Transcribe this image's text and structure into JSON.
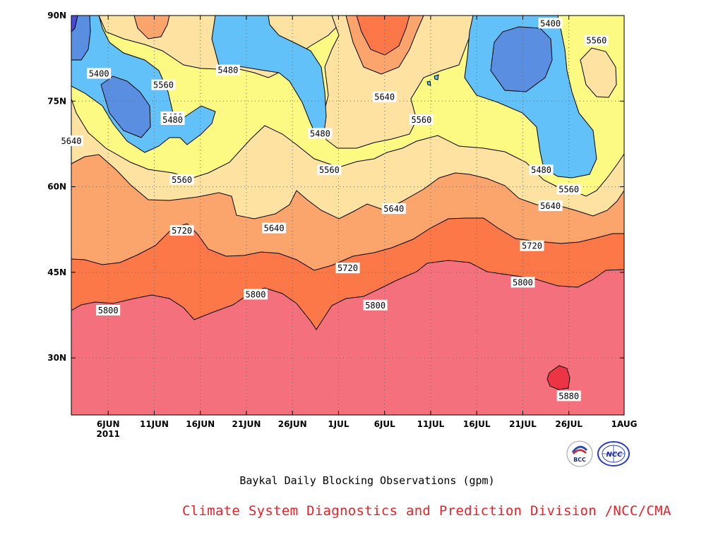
{
  "chart_data": {
    "type": "heatmap",
    "title": "Baykal Daily Blocking Observations (gpm)",
    "x_axis": {
      "type": "date",
      "range": [
        "2011-06-02",
        "2011-08-01"
      ],
      "tick_labels": [
        "6JUN",
        "11JUN",
        "16JUN",
        "21JUN",
        "26JUN",
        "1JUL",
        "6JUL",
        "11JUL",
        "16JUL",
        "21JUL",
        "26JUL",
        "1AUG"
      ],
      "tick_values": [
        "2011-06-06",
        "2011-06-11",
        "2011-06-16",
        "2011-06-21",
        "2011-06-26",
        "2011-07-01",
        "2011-07-06",
        "2011-07-11",
        "2011-07-16",
        "2011-07-21",
        "2011-07-26",
        "2011-08-01"
      ],
      "year_label": "2011"
    },
    "y_axis": {
      "range": [
        20,
        90
      ],
      "tick_labels": [
        "30N",
        "45N",
        "60N",
        "75N",
        "90N"
      ],
      "tick_values": [
        30,
        45,
        60,
        75,
        90
      ]
    },
    "grid": true,
    "contour_levels": [
      5400,
      5480,
      5560,
      5640,
      5720,
      5800,
      5880
    ],
    "level_colors": {
      "below_5320": "#4a4ad8",
      "5320_5400": "#5a8ee0",
      "5400_5480": "#62c1f8",
      "5480_5560": "#fdfa84",
      "5560_5640": "#fde2a2",
      "5640_5720": "#fba46c",
      "5720_5800": "#fd7848",
      "5800_5880": "#f4707c",
      "above_5880": "#ec3444"
    },
    "contour_labels": [
      {
        "text": "5400",
        "date": "2011-06-05",
        "lat": 79.8
      },
      {
        "text": "5400",
        "date": "2011-07-24",
        "lat": 88.6
      },
      {
        "text": "5480",
        "date": "2011-06-19",
        "lat": 80.4
      },
      {
        "text": "5480",
        "date": "2011-06-13",
        "lat": 72.2
      },
      {
        "text": "5480",
        "date": "2011-06-13",
        "lat": 71.7
      },
      {
        "text": "5480",
        "date": "2011-06-29",
        "lat": 69.3
      },
      {
        "text": "5480",
        "date": "2011-07-23",
        "lat": 62.9
      },
      {
        "text": "5560",
        "date": "2011-06-12",
        "lat": 77.8
      },
      {
        "text": "5560",
        "date": "2011-06-14",
        "lat": 61.2
      },
      {
        "text": "5560",
        "date": "2011-06-30",
        "lat": 62.9
      },
      {
        "text": "5560",
        "date": "2011-07-10",
        "lat": 71.7
      },
      {
        "text": "5560",
        "date": "2011-07-26",
        "lat": 59.5
      },
      {
        "text": "5560",
        "date": "2011-07-29",
        "lat": 85.6
      },
      {
        "text": "5640",
        "date": "2011-06-02",
        "lat": 68.0
      },
      {
        "text": "5640",
        "date": "2011-06-24",
        "lat": 52.7
      },
      {
        "text": "5640",
        "date": "2011-07-06",
        "lat": 75.7
      },
      {
        "text": "5640",
        "date": "2011-07-07",
        "lat": 56.1
      },
      {
        "text": "5640",
        "date": "2011-07-24",
        "lat": 56.6
      },
      {
        "text": "5720",
        "date": "2011-06-14",
        "lat": 52.3
      },
      {
        "text": "5720",
        "date": "2011-07-02",
        "lat": 45.7
      },
      {
        "text": "5720",
        "date": "2011-07-22",
        "lat": 49.6
      },
      {
        "text": "5800",
        "date": "2011-06-06",
        "lat": 38.3
      },
      {
        "text": "5800",
        "date": "2011-06-22",
        "lat": 41.1
      },
      {
        "text": "5800",
        "date": "2011-07-05",
        "lat": 39.2
      },
      {
        "text": "5800",
        "date": "2011-07-21",
        "lat": 43.2
      },
      {
        "text": "5880",
        "date": "2011-07-26",
        "lat": 23.3
      }
    ]
  },
  "credit": "Climate System Diagnostics and Prediction Division /NCC/CMA",
  "logos": {
    "bcc_text": "BCC",
    "ncc_text": "NCC"
  }
}
